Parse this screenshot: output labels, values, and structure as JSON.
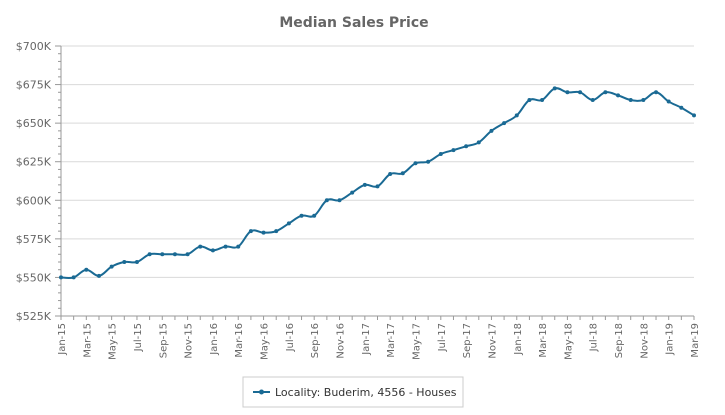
{
  "chart_data": {
    "type": "line",
    "title": "Median Sales Price",
    "xlabel": "",
    "ylabel": "",
    "ylim": [
      525000,
      700000
    ],
    "yticks": [
      {
        "value": 525000,
        "label": "$525K"
      },
      {
        "value": 550000,
        "label": "$550K"
      },
      {
        "value": 575000,
        "label": "$575K"
      },
      {
        "value": 600000,
        "label": "$600K"
      },
      {
        "value": 625000,
        "label": "$625K"
      },
      {
        "value": 650000,
        "label": "$650K"
      },
      {
        "value": 675000,
        "label": "$675K"
      },
      {
        "value": 700000,
        "label": "$700K"
      }
    ],
    "x": [
      "Jan-15",
      "Feb-15",
      "Mar-15",
      "Apr-15",
      "May-15",
      "Jun-15",
      "Jul-15",
      "Aug-15",
      "Sep-15",
      "Oct-15",
      "Nov-15",
      "Dec-15",
      "Jan-16",
      "Feb-16",
      "Mar-16",
      "Apr-16",
      "May-16",
      "Jun-16",
      "Jul-16",
      "Aug-16",
      "Sep-16",
      "Oct-16",
      "Nov-16",
      "Dec-16",
      "Jan-17",
      "Feb-17",
      "Mar-17",
      "Apr-17",
      "May-17",
      "Jun-17",
      "Jul-17",
      "Aug-17",
      "Sep-17",
      "Oct-17",
      "Nov-17",
      "Dec-17",
      "Jan-18",
      "Feb-18",
      "Mar-18",
      "Apr-18",
      "May-18",
      "Jun-18",
      "Jul-18",
      "Aug-18",
      "Sep-18",
      "Oct-18",
      "Nov-18",
      "Dec-18",
      "Jan-19",
      "Feb-19",
      "Mar-19"
    ],
    "xtick_labels": [
      "Jan-15",
      "Mar-15",
      "May-15",
      "Jul-15",
      "Sep-15",
      "Nov-15",
      "Jan-16",
      "Mar-16",
      "May-16",
      "Jul-16",
      "Sep-16",
      "Nov-16",
      "Jan-17",
      "Mar-17",
      "May-17",
      "Jul-17",
      "Sep-17",
      "Nov-17",
      "Jan-18",
      "Mar-18",
      "May-18",
      "Jul-18",
      "Sep-18",
      "Nov-18",
      "Jan-19",
      "Mar-19"
    ],
    "series": [
      {
        "name": "Locality: Buderim, 4556 - Houses",
        "color": "#1a6a94",
        "values": [
          550000,
          550000,
          555000,
          551000,
          557000,
          560000,
          560000,
          565000,
          565000,
          565000,
          565000,
          570000,
          567500,
          570000,
          570000,
          580000,
          579000,
          580000,
          585000,
          590000,
          590000,
          600000,
          600000,
          605000,
          610000,
          609000,
          617000,
          617500,
          624000,
          625000,
          630000,
          632500,
          635000,
          637500,
          645000,
          650000,
          655000,
          665000,
          665000,
          672500,
          670000,
          670000,
          665000,
          670000,
          668000,
          665000,
          665000,
          670000,
          664000,
          660000,
          655000
        ]
      }
    ],
    "grid": true,
    "legend_position": "bottom"
  }
}
